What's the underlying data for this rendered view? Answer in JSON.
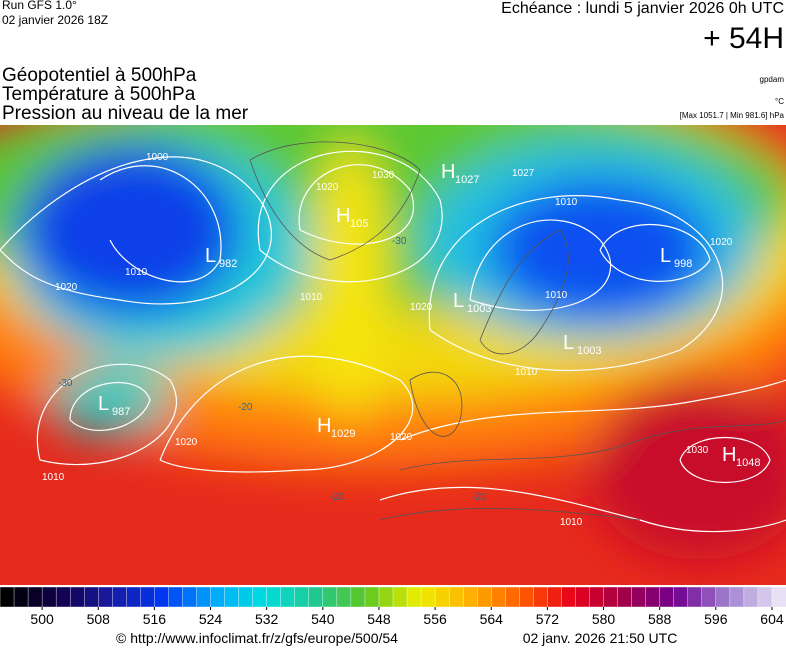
{
  "header": {
    "run": "Run GFS 1.0°",
    "run_date": "02 janvier 2026 18Z",
    "echeance": "Echéance : lundi 5 janvier 2026 0h UTC",
    "lead": "+ 54H"
  },
  "titles": [
    "Géopotentiel à 500hPa",
    "Température à 500hPa",
    "Pression au niveau de la mer"
  ],
  "units": {
    "geopotential": "gpdam",
    "temperature": "°C",
    "pressure": "[Max 1051.7 | Min 981.6] hPa"
  },
  "pressure_centers": [
    {
      "type": "L",
      "value": "982"
    },
    {
      "type": "H",
      "value": "1027"
    },
    {
      "type": "H",
      "value": "105"
    },
    {
      "type": "L",
      "value": "998"
    },
    {
      "type": "L",
      "value": "1003"
    },
    {
      "type": "L",
      "value": "1003"
    },
    {
      "type": "L",
      "value": "987"
    },
    {
      "type": "H",
      "value": "1029"
    },
    {
      "type": "H",
      "value": "1048"
    }
  ],
  "isobar_labels": [
    "1000",
    "1010",
    "1020",
    "1030",
    "1020",
    "1010",
    "1010",
    "1010",
    "1020",
    "1020",
    "1010",
    "1020",
    "1010",
    "1020",
    "1030",
    "1010",
    "1027"
  ],
  "temperature_labels": [
    "-30",
    "-30",
    "-20",
    "-20",
    "-20"
  ],
  "colorbar": {
    "min": 494,
    "max": 606,
    "step": 2,
    "ticks": [
      500,
      508,
      516,
      524,
      532,
      540,
      548,
      556,
      564,
      572,
      580,
      588,
      596,
      604
    ],
    "colors": [
      "#000000",
      "#10004a",
      "#1a1aa0",
      "#0036f0",
      "#00a8ff",
      "#00dede",
      "#20c890",
      "#60c820",
      "#eeee00",
      "#ffb000",
      "#ff5a00",
      "#e8001a",
      "#a0004a",
      "#700090",
      "#a080d0",
      "#e8e0f4"
    ]
  },
  "footer": {
    "url": "© http://www.infoclimat.fr/z/gfs/europe/500/54",
    "timestamp": "02 janv. 2026 21:50 UTC"
  }
}
